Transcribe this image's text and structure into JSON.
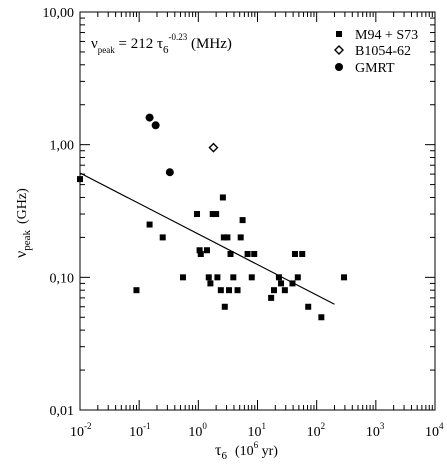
{
  "chart_data": {
    "type": "scatter",
    "xscale": "log",
    "yscale": "log",
    "xlim": [
      0.01,
      10000
    ],
    "ylim": [
      0.01,
      10
    ],
    "xlabel": {
      "main": "τ",
      "sub": "6",
      "unit": "(10",
      "unit_exp": "6",
      "unit_tail": " yr)"
    },
    "ylabel": {
      "main": "ν",
      "sub": "peak",
      "unit": "(GHz)"
    },
    "x_ticks": [
      {
        "value": 0.01,
        "base": "10",
        "exp": "-2"
      },
      {
        "value": 0.1,
        "base": "10",
        "exp": "-1"
      },
      {
        "value": 1,
        "base": "10",
        "exp": "0"
      },
      {
        "value": 10,
        "base": "10",
        "exp": "1"
      },
      {
        "value": 100,
        "base": "10",
        "exp": "2"
      },
      {
        "value": 1000,
        "base": "10",
        "exp": "3"
      },
      {
        "value": 10000,
        "base": "10",
        "exp": "4"
      }
    ],
    "y_ticks": [
      {
        "value": 0.01,
        "label": "0,01"
      },
      {
        "value": 0.1,
        "label": "0,10"
      },
      {
        "value": 1,
        "label": "1,00"
      },
      {
        "value": 10,
        "label": "10,00"
      }
    ],
    "annotation": {
      "nu": "ν",
      "nu_sub": "peak",
      "eq": " = 212  τ",
      "tau_sub": "6",
      "exp": "-0.23",
      "unit": " (MHz)"
    },
    "series": [
      {
        "name": "M94 + S73",
        "marker": "square",
        "points": [
          [
            0.01,
            0.55
          ],
          [
            0.09,
            0.08
          ],
          [
            0.15,
            0.25
          ],
          [
            0.25,
            0.2
          ],
          [
            0.55,
            0.1
          ],
          [
            0.95,
            0.3
          ],
          [
            1.05,
            0.16
          ],
          [
            1.1,
            0.15
          ],
          [
            1.4,
            0.16
          ],
          [
            1.5,
            0.1
          ],
          [
            1.6,
            0.09
          ],
          [
            1.75,
            0.3
          ],
          [
            2.0,
            0.3
          ],
          [
            2.1,
            0.1
          ],
          [
            2.4,
            0.08
          ],
          [
            2.6,
            0.4
          ],
          [
            2.7,
            0.2
          ],
          [
            2.8,
            0.06
          ],
          [
            3.1,
            0.2
          ],
          [
            3.3,
            0.08
          ],
          [
            3.5,
            0.15
          ],
          [
            3.9,
            0.1
          ],
          [
            4.6,
            0.08
          ],
          [
            5.2,
            0.2
          ],
          [
            5.6,
            0.27
          ],
          [
            6.8,
            0.15
          ],
          [
            8.0,
            0.1
          ],
          [
            8.8,
            0.15
          ],
          [
            17,
            0.07
          ],
          [
            19,
            0.08
          ],
          [
            23,
            0.1
          ],
          [
            25,
            0.09
          ],
          [
            29,
            0.08
          ],
          [
            39,
            0.09
          ],
          [
            43,
            0.15
          ],
          [
            48,
            0.1
          ],
          [
            57,
            0.15
          ],
          [
            72,
            0.06
          ],
          [
            120,
            0.05
          ],
          [
            290,
            0.1
          ]
        ]
      },
      {
        "name": "B1054-62",
        "marker": "diamond-open",
        "points": [
          [
            1.8,
            0.95
          ]
        ]
      },
      {
        "name": "GMRT",
        "marker": "circle",
        "points": [
          [
            0.15,
            1.6
          ],
          [
            0.19,
            1.4
          ],
          [
            0.33,
            0.62
          ]
        ]
      }
    ],
    "fit_line": {
      "coef": 0.212,
      "exponent": -0.23,
      "x_range": [
        0.01,
        200
      ]
    },
    "legend": {
      "position": "top-right"
    }
  }
}
